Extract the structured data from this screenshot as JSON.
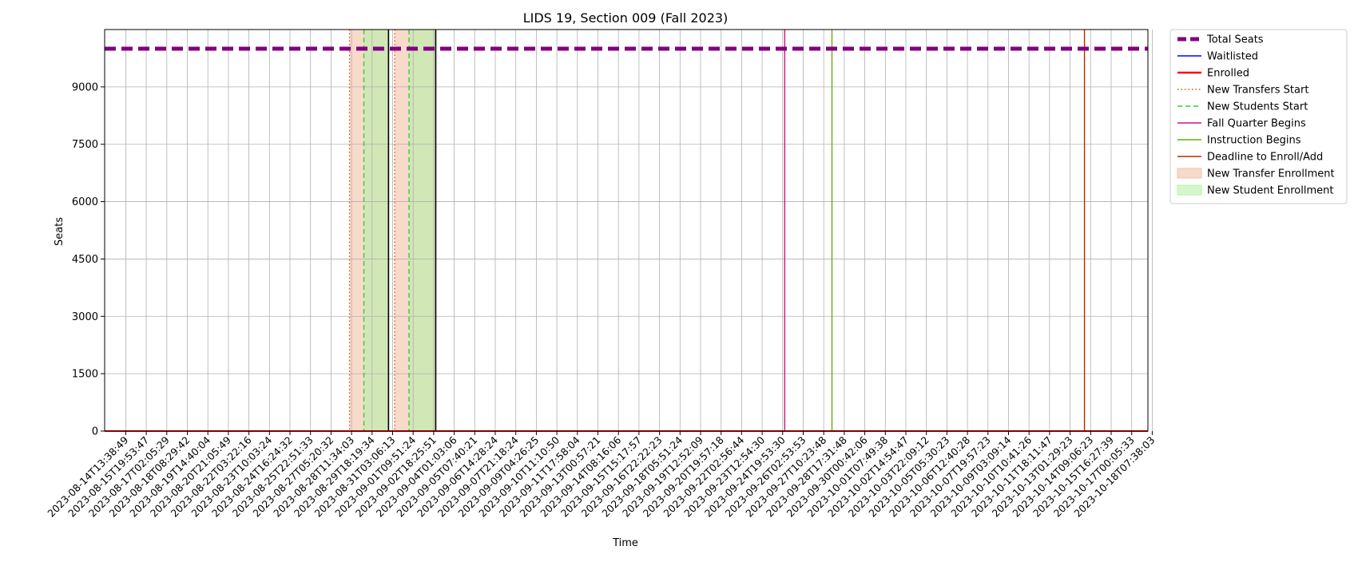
{
  "chart_data": {
    "type": "line",
    "title": "LIDS 19, Section 009 (Fall 2023)",
    "xlabel": "Time",
    "ylabel": "Seats",
    "ylim": [
      0,
      10500
    ],
    "yticks": [
      0,
      1500,
      3000,
      4500,
      6000,
      7500,
      9000
    ],
    "grid": true,
    "legend_position": "outside-right",
    "x_tick_labels": [
      "2023-08-14T13:38:49",
      "2023-08-15T19:53:47",
      "2023-08-17T02:05:29",
      "2023-08-18T08:29:42",
      "2023-08-19T14:40:04",
      "2023-08-20T21:05:49",
      "2023-08-22T03:22:16",
      "2023-08-23T10:03:24",
      "2023-08-24T16:24:32",
      "2023-08-25T22:51:33",
      "2023-08-27T05:20:32",
      "2023-08-28T11:34:03",
      "2023-08-29T18:19:34",
      "2023-08-31T03:06:13",
      "2023-09-01T09:51:24",
      "2023-09-02T18:25:51",
      "2023-09-04T01:03:06",
      "2023-09-05T07:40:21",
      "2023-09-06T14:28:24",
      "2023-09-07T21:18:24",
      "2023-09-09T04:26:25",
      "2023-09-10T11:10:50",
      "2023-09-11T17:58:04",
      "2023-09-13T00:57:21",
      "2023-09-14T08:16:06",
      "2023-09-15T15:17:57",
      "2023-09-16T22:22:23",
      "2023-09-18T05:51:24",
      "2023-09-19T12:52:09",
      "2023-09-20T19:57:18",
      "2023-09-22T02:56:44",
      "2023-09-23T12:54:30",
      "2023-09-24T19:53:30",
      "2023-09-26T02:53:53",
      "2023-09-27T10:23:48",
      "2023-09-28T17:31:48",
      "2023-09-30T00:42:06",
      "2023-10-01T07:49:38",
      "2023-10-02T14:54:47",
      "2023-10-03T22:09:12",
      "2023-10-05T05:30:23",
      "2023-10-06T12:40:28",
      "2023-10-07T19:57:23",
      "2023-10-09T03:09:14",
      "2023-10-10T10:41:26",
      "2023-10-11T18:11:47",
      "2023-10-13T01:29:23",
      "2023-10-14T09:06:23",
      "2023-10-15T16:27:39",
      "2023-10-17T00:05:33",
      "2023-10-18T07:38:03"
    ],
    "x_index_range": [
      0,
      50
    ],
    "series": [
      {
        "name": "Total Seats",
        "color": "#800080",
        "style": "dashed",
        "values": [
          10000,
          10000
        ]
      },
      {
        "name": "Waitlisted",
        "color": "#0000ff",
        "style": "solid",
        "values": [
          0,
          0
        ]
      },
      {
        "name": "Enrolled",
        "color": "#ff0000",
        "style": "solid",
        "values": [
          0,
          0
        ]
      }
    ],
    "events": [
      {
        "name": "New Transfers Start",
        "x_index": 10.9,
        "color": "#ff4500",
        "style": "dotted"
      },
      {
        "name": "New Students Start",
        "x_index": 11.6,
        "color": "#32cd32",
        "style": "dashed"
      },
      {
        "name": "Fall Quarter Begins",
        "x_index": 32.1,
        "color": "#c71585",
        "style": "solid"
      },
      {
        "name": "Instruction Begins",
        "x_index": 34.4,
        "color": "#6bae00",
        "style": "solid"
      },
      {
        "name": "Deadline to Enroll/Add",
        "x_index": 46.7,
        "color": "#b22e00",
        "style": "solid"
      }
    ],
    "extra_markers": [
      {
        "x_index": 13.1,
        "color": "#ff4500",
        "style": "dotted"
      },
      {
        "x_index": 13.8,
        "color": "#32cd32",
        "style": "dashed"
      }
    ],
    "black_lines": [
      12.8,
      15.1
    ],
    "spans": [
      {
        "name": "New Transfer Enrollment",
        "color": "#f4c2a8",
        "ranges": [
          [
            10.9,
            12.8
          ],
          [
            13.1,
            15.1
          ]
        ]
      },
      {
        "name": "New Student Enrollment",
        "color": "#b9f0a8",
        "ranges": [
          [
            11.6,
            12.8
          ],
          [
            13.8,
            15.1
          ]
        ]
      }
    ],
    "legend": [
      {
        "label": "Total Seats",
        "kind": "line",
        "color": "#800080",
        "style": "thick-dashed"
      },
      {
        "label": "Waitlisted",
        "kind": "line",
        "color": "#0000ff",
        "style": "solid"
      },
      {
        "label": "Enrolled",
        "kind": "line",
        "color": "#ff0000",
        "style": "thick-solid"
      },
      {
        "label": "New Transfers Start",
        "kind": "line",
        "color": "#ff4500",
        "style": "dotted"
      },
      {
        "label": "New Students Start",
        "kind": "line",
        "color": "#32cd32",
        "style": "dashed"
      },
      {
        "label": "Fall Quarter Begins",
        "kind": "line",
        "color": "#c71585",
        "style": "solid"
      },
      {
        "label": "Instruction Begins",
        "kind": "line",
        "color": "#6bae00",
        "style": "solid"
      },
      {
        "label": "Deadline to Enroll/Add",
        "kind": "line",
        "color": "#b22e00",
        "style": "solid"
      },
      {
        "label": "New Transfer Enrollment",
        "kind": "patch",
        "color": "#f4c2a8",
        "style": "patch"
      },
      {
        "label": "New Student Enrollment",
        "kind": "patch",
        "color": "#b9f0a8",
        "style": "patch"
      }
    ]
  }
}
